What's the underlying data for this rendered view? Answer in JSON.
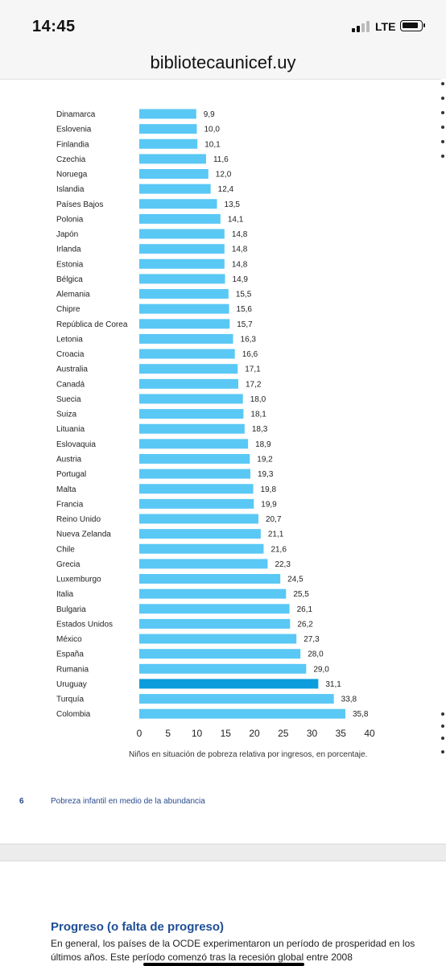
{
  "status": {
    "time": "14:45",
    "network": "LTE"
  },
  "browser": {
    "url": "bibliotecaunicef.uy"
  },
  "chart_data": {
    "type": "bar",
    "orientation": "horizontal",
    "categories": [
      "Dinamarca",
      "Eslovenia",
      "Finlandia",
      "Czechia",
      "Noruega",
      "Islandia",
      "Países Bajos",
      "Polonia",
      "Japón",
      "Irlanda",
      "Estonia",
      "Bélgica",
      "Alemania",
      "Chipre",
      "República de Corea",
      "Letonia",
      "Croacia",
      "Australia",
      "Canadá",
      "Suecia",
      "Suiza",
      "Lituania",
      "Eslovaquia",
      "Austria",
      "Portugal",
      "Malta",
      "Francia",
      "Reino Unido",
      "Nueva Zelanda",
      "Chile",
      "Grecia",
      "Luxemburgo",
      "Italia",
      "Bulgaria",
      "Estados Unidos",
      "México",
      "España",
      "Rumania",
      "Uruguay",
      "Turquía",
      "Colombia"
    ],
    "values": [
      9.9,
      10.0,
      10.1,
      11.6,
      12.0,
      12.4,
      13.5,
      14.1,
      14.8,
      14.8,
      14.8,
      14.9,
      15.5,
      15.6,
      15.7,
      16.3,
      16.6,
      17.1,
      17.2,
      18.0,
      18.1,
      18.3,
      18.9,
      19.2,
      19.3,
      19.8,
      19.9,
      20.7,
      21.1,
      21.6,
      22.3,
      24.5,
      25.5,
      26.1,
      26.2,
      27.3,
      28.0,
      29.0,
      31.1,
      33.8,
      35.8
    ],
    "value_labels": [
      "9,9",
      "10,0",
      "10,1",
      "11,6",
      "12,0",
      "12,4",
      "13,5",
      "14,1",
      "14,8",
      "14,8",
      "14,8",
      "14,9",
      "15,5",
      "15,6",
      "15,7",
      "16,3",
      "16,6",
      "17,1",
      "17,2",
      "18,0",
      "18,1",
      "18,3",
      "18,9",
      "19,2",
      "19,3",
      "19,8",
      "19,9",
      "20,7",
      "21,1",
      "21,6",
      "22,3",
      "24,5",
      "25,5",
      "26,1",
      "26,2",
      "27,3",
      "28,0",
      "29,0",
      "31,1",
      "33,8",
      "35,8"
    ],
    "highlight": "Uruguay",
    "xlim": [
      0,
      40
    ],
    "xticks": [
      "0",
      "5",
      "10",
      "15",
      "20",
      "25",
      "30",
      "35",
      "40"
    ],
    "xlabel": "Niños en situación de pobreza relativa por ingresos, en porcentaje.",
    "grid": false,
    "colors": {
      "bar": "#5ac8f5",
      "highlight": "#0d9ddc"
    }
  },
  "footer": {
    "page_number": "6",
    "text": "Pobreza infantil en medio de la abundancia"
  },
  "section": {
    "title": "Progreso (o falta de progreso)",
    "paragraph": "En general, los países de la OCDE experimentaron un período de prosperidad en los últimos años. Este período comenzó tras la recesión global entre 2008"
  }
}
